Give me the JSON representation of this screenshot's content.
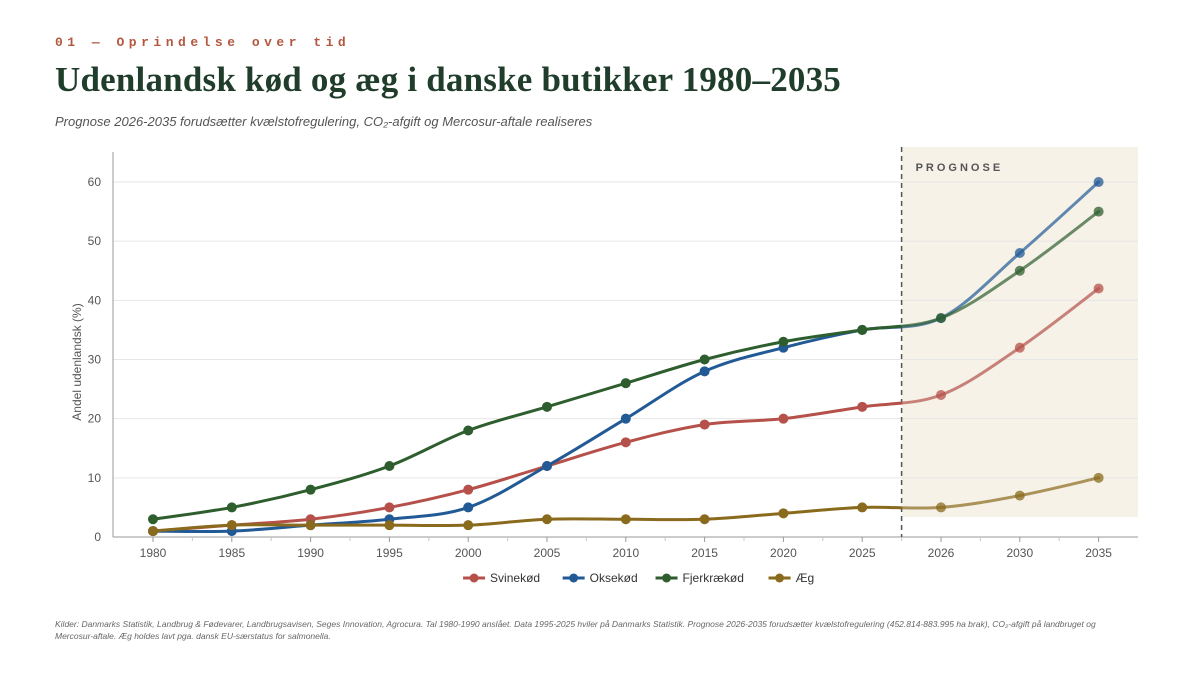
{
  "header": {
    "eyebrow": "01 — Oprindelse over tid",
    "title": "Udenlandsk kød og æg i danske butikker 1980–2035",
    "subtitle": "Prognose 2026-2035 forudsætter kvælstofregulering, CO₂-afgift og Mercosur-aftale realiseres"
  },
  "footnote": "Kilder: Danmarks Statistik, Landbrug & Fødevarer, Landbrugsavisen, Seges Innovation, Agrocura. Tal 1980-1990 anslået. Data 1995-2025 hviler på Danmarks Statistik. Prognose 2026-2035 forudsætter kvælstofregulering (452.814-883.995 ha brak), CO₂-afgift på landbruget og Mercosur-aftale. Æg holdes lavt pga. dansk EU-særstatus for salmonella.",
  "chart_data": {
    "type": "line",
    "categories": [
      "1980",
      "1985",
      "1990",
      "1995",
      "2000",
      "2005",
      "2010",
      "2015",
      "2020",
      "2025",
      "2026",
      "2030",
      "2035"
    ],
    "forecast_start_index": 10,
    "forecast_label": "PROGNOSE",
    "ylabel": "Andel udenlandsk (%)",
    "xlabel": "",
    "ylim": [
      0,
      65
    ],
    "yticks": [
      0,
      10,
      20,
      30,
      40,
      50,
      60
    ],
    "grid": true,
    "legend_position": "bottom-center",
    "series": [
      {
        "name": "Svinekød",
        "color": "#b5514a",
        "values": [
          1,
          2,
          3,
          5,
          8,
          12,
          16,
          19,
          20,
          22,
          24,
          32,
          42
        ]
      },
      {
        "name": "Oksekød",
        "color": "#225a96",
        "values": [
          1,
          1,
          2,
          3,
          5,
          12,
          20,
          28,
          32,
          35,
          37,
          48,
          60
        ]
      },
      {
        "name": "Fjerkrækød",
        "color": "#2e5e2e",
        "values": [
          3,
          5,
          8,
          12,
          18,
          22,
          26,
          30,
          33,
          35,
          37,
          45,
          55
        ]
      },
      {
        "name": "Æg",
        "color": "#8a6a1c",
        "values": [
          1,
          2,
          2,
          2,
          2,
          3,
          3,
          3,
          4,
          5,
          5,
          7,
          10
        ]
      }
    ]
  }
}
